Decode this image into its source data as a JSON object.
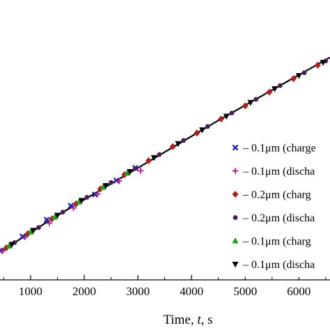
{
  "chart_data": {
    "type": "scatter",
    "xlabel_parts": [
      "Time, ",
      "t",
      ", s"
    ],
    "ylabel": "",
    "xlim": [
      430,
      6580
    ],
    "ylim": [
      0,
      1
    ],
    "x_ticks": [
      1000,
      2000,
      3000,
      4000,
      5000,
      6000
    ],
    "x_tick_labels": [
      "1000",
      "2000",
      "3000",
      "4000",
      "5000",
      "6000"
    ],
    "grid": false,
    "legend_placement": "right",
    "series": [
      {
        "name": "– 0.1μm (charge",
        "marker": "x",
        "color": "#1a1aa8",
        "x": [
          430,
          850,
          1300,
          1750,
          2200,
          2600,
          2950
        ],
        "y": [
          0.105,
          0.155,
          0.215,
          0.265,
          0.305,
          0.355,
          0.4
        ]
      },
      {
        "name": "– 0.1μm (discha",
        "marker": "+",
        "color": "#b3279b",
        "x": [
          480,
          900,
          1350,
          1800,
          2250,
          2650,
          3050
        ],
        "y": [
          0.103,
          0.153,
          0.203,
          0.257,
          0.307,
          0.353,
          0.39
        ]
      },
      {
        "name": "– 0.2μm (charg",
        "marker": "diamond",
        "color": "#b0211c",
        "x": [
          550,
          950,
          1400,
          1850,
          2300,
          2750,
          3200,
          3650,
          4100,
          4550,
          5000,
          5450,
          5900,
          6350
        ],
        "y": [
          0.115,
          0.165,
          0.218,
          0.272,
          0.325,
          0.376,
          0.426,
          0.476,
          0.525,
          0.575,
          0.622,
          0.671,
          0.719,
          0.767
        ]
      },
      {
        "name": "– 0.2μm (discha",
        "marker": "circle",
        "color": "#4a1f55",
        "x": [
          700,
          1150,
          1600,
          2050,
          2500,
          2950,
          3400,
          3850,
          4300,
          4750,
          5200,
          5650,
          6100,
          6500
        ],
        "y": [
          0.133,
          0.187,
          0.242,
          0.295,
          0.348,
          0.398,
          0.448,
          0.498,
          0.548,
          0.596,
          0.645,
          0.694,
          0.74,
          0.782
        ]
      },
      {
        "name": "– 0.1μm (charg",
        "marker": "triangle-up",
        "color": "#1f9e1f",
        "x": [
          600,
          1000,
          1450,
          1900,
          2350,
          2800
        ],
        "y": [
          0.121,
          0.171,
          0.224,
          0.278,
          0.331,
          0.381
        ]
      },
      {
        "name": "– 0.1μm (discha",
        "marker": "triangle-down",
        "color": "#000000",
        "x": [
          650,
          1050,
          1500,
          1950,
          2400,
          2850,
          3300,
          3750,
          4200,
          4650,
          5100,
          5550,
          6000,
          6450
        ],
        "y": [
          0.127,
          0.177,
          0.231,
          0.284,
          0.337,
          0.387,
          0.437,
          0.487,
          0.536,
          0.585,
          0.634,
          0.683,
          0.73,
          0.777
        ]
      }
    ],
    "fit_line": {
      "x": [
        430,
        1500,
        3000,
        4500,
        6580
      ],
      "y": [
        0.1,
        0.23,
        0.4,
        0.57,
        0.795
      ],
      "color": "#000000"
    }
  }
}
